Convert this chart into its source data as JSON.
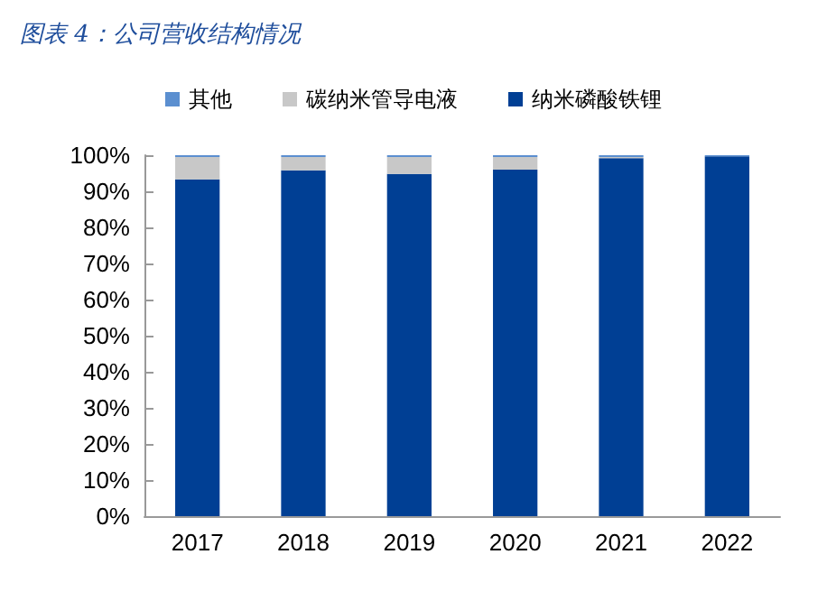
{
  "chart_data": {
    "type": "bar",
    "title": "图表 4：公司营收结构情况",
    "stacked": true,
    "legend": "top",
    "grid": false,
    "categories": [
      "2017",
      "2018",
      "2019",
      "2020",
      "2021",
      "2022"
    ],
    "series": [
      {
        "name": "纳米磷酸铁锂",
        "color": "#003f94",
        "values": [
          93.3,
          95.8,
          94.8,
          96,
          99.2,
          99.7
        ]
      },
      {
        "name": "碳纳米管导电液",
        "color": "#c8c8c8",
        "values": [
          6.2,
          3.7,
          4.7,
          3.5,
          0.3,
          0
        ]
      },
      {
        "name": "其他",
        "color": "#5b8fd0",
        "values": [
          0.5,
          0.5,
          0.5,
          0.5,
          0.5,
          0.3
        ]
      }
    ],
    "ylim": [
      0,
      100
    ],
    "yticks": [
      {
        "value": 0,
        "label": "0%"
      },
      {
        "value": 10,
        "label": "10%"
      },
      {
        "value": 20,
        "label": "20%"
      },
      {
        "value": 30,
        "label": "30%"
      },
      {
        "value": 40,
        "label": "40%"
      },
      {
        "value": 50,
        "label": "50%"
      },
      {
        "value": 60,
        "label": "60%"
      },
      {
        "value": 70,
        "label": "70%"
      },
      {
        "value": 80,
        "label": "80%"
      },
      {
        "value": 90,
        "label": "90%"
      },
      {
        "value": 100,
        "label": "100%"
      }
    ]
  }
}
